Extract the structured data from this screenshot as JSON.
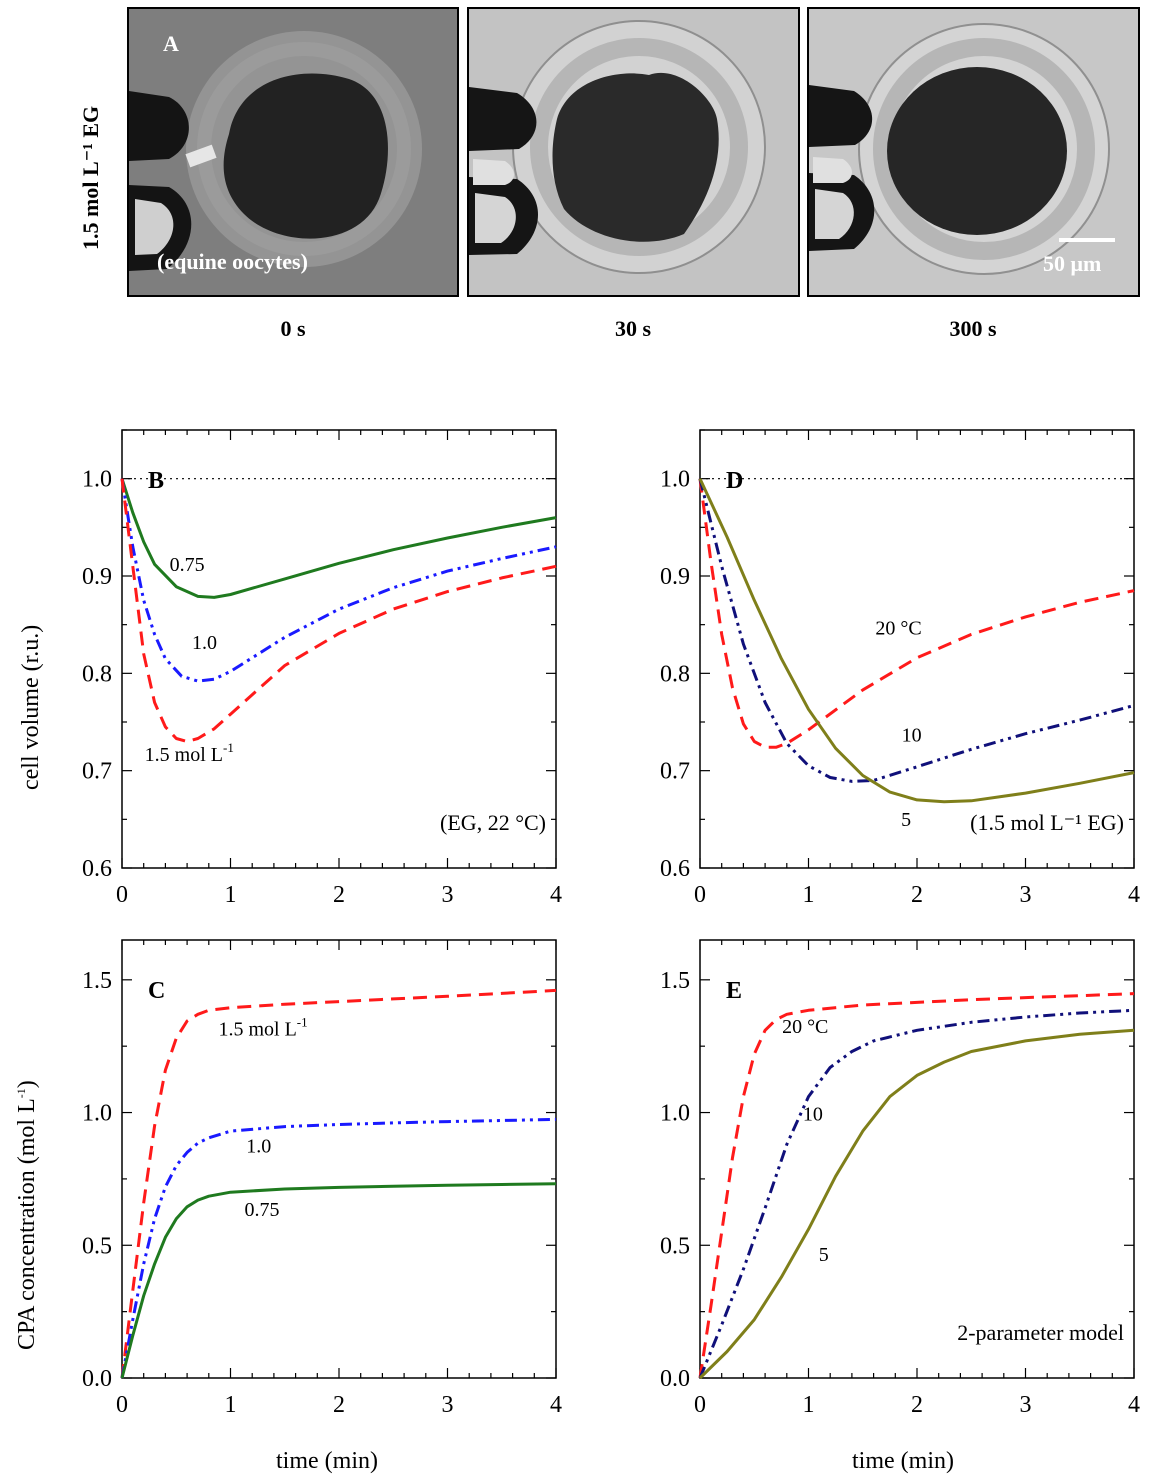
{
  "panel_a": {
    "letter": "A",
    "side_label": "1.5 mol L⁻¹ EG",
    "annotation": "(equine oocytes)",
    "scale_bar": "50 μm",
    "frames": [
      {
        "time": "0 s",
        "shade": "#7e7e7e"
      },
      {
        "time": "30 s",
        "shade": "#c3c3c3"
      },
      {
        "time": "300 s",
        "shade": "#c7c7c7"
      }
    ]
  },
  "colors": {
    "red": "#ff1a1a",
    "blue": "#1a1aff",
    "green": "#1f7a1f",
    "navy": "#10107a",
    "olive": "#7f7f1a"
  },
  "shared": {
    "xlabel": "time (min)",
    "ylabel_top": "cell volume (r.u.)",
    "ylabel_bottom": "CPA concentration (mol L",
    "ylabel_bottom_sup": "-1",
    "ylabel_bottom_end": ")"
  },
  "chart_data": [
    {
      "id": "B",
      "type": "line",
      "letter": "B",
      "xlim": [
        0,
        4
      ],
      "ylim": [
        0.6,
        1.05
      ],
      "xticks": [
        "0",
        "1",
        "2",
        "3",
        "4"
      ],
      "yticks": [
        "0.6",
        "0.7",
        "0.8",
        "0.9",
        "1.0"
      ],
      "ytick_values": [
        0.6,
        0.7,
        0.8,
        0.9,
        1.0
      ],
      "reference_line": 1.0,
      "annotation": "(EG, 22 °C)",
      "series": [
        {
          "name": "0.75",
          "style": "solid",
          "color": "green",
          "x": [
            0,
            0.1,
            0.2,
            0.3,
            0.5,
            0.7,
            0.85,
            1.0,
            1.5,
            2.0,
            2.5,
            3.0,
            3.5,
            4.0
          ],
          "y": [
            1.0,
            0.965,
            0.935,
            0.912,
            0.889,
            0.879,
            0.878,
            0.881,
            0.897,
            0.913,
            0.927,
            0.939,
            0.95,
            0.96
          ]
        },
        {
          "name": "1.0",
          "style": "dashdotdot",
          "color": "blue",
          "x": [
            0,
            0.1,
            0.2,
            0.3,
            0.4,
            0.55,
            0.7,
            0.85,
            1.0,
            1.5,
            2.0,
            2.5,
            3.0,
            3.5,
            4.0
          ],
          "y": [
            1.0,
            0.93,
            0.875,
            0.84,
            0.815,
            0.797,
            0.792,
            0.794,
            0.802,
            0.837,
            0.866,
            0.888,
            0.905,
            0.918,
            0.93
          ]
        },
        {
          "name": "1.5 mol L⁻¹",
          "style": "dashed",
          "color": "red",
          "x": [
            0,
            0.1,
            0.2,
            0.3,
            0.4,
            0.5,
            0.6,
            0.7,
            0.85,
            1.0,
            1.5,
            2.0,
            2.5,
            3.0,
            3.5,
            4.0
          ],
          "y": [
            1.0,
            0.91,
            0.82,
            0.77,
            0.745,
            0.733,
            0.73,
            0.733,
            0.743,
            0.758,
            0.808,
            0.841,
            0.866,
            0.884,
            0.898,
            0.91
          ]
        }
      ],
      "labels": [
        {
          "text": "0.75",
          "x": 0.6,
          "y": 0.905
        },
        {
          "text": "1.0",
          "x": 0.76,
          "y": 0.825
        },
        {
          "text": "1.5 mol L",
          "sup": "-1",
          "x": 0.62,
          "y": 0.71
        }
      ]
    },
    {
      "id": "D",
      "type": "line",
      "letter": "D",
      "xlim": [
        0,
        4
      ],
      "ylim": [
        0.6,
        1.05
      ],
      "xticks": [
        "0",
        "1",
        "2",
        "3",
        "4"
      ],
      "yticks": [
        "0.6",
        "0.7",
        "0.8",
        "0.9",
        "1.0"
      ],
      "ytick_values": [
        0.6,
        0.7,
        0.8,
        0.9,
        1.0
      ],
      "reference_line": 1.0,
      "annotation": "(1.5 mol L⁻¹ EG)",
      "series": [
        {
          "name": "20 °C",
          "style": "dashed",
          "color": "red",
          "x": [
            0,
            0.1,
            0.2,
            0.3,
            0.4,
            0.5,
            0.6,
            0.7,
            0.8,
            1.0,
            1.5,
            2.0,
            2.5,
            3.0,
            3.5,
            4.0
          ],
          "y": [
            1.0,
            0.915,
            0.84,
            0.785,
            0.748,
            0.73,
            0.724,
            0.724,
            0.728,
            0.742,
            0.783,
            0.816,
            0.84,
            0.858,
            0.873,
            0.885
          ]
        },
        {
          "name": "10",
          "style": "dashdotdot",
          "color": "navy",
          "x": [
            0,
            0.2,
            0.4,
            0.6,
            0.8,
            1.0,
            1.2,
            1.4,
            1.6,
            2.0,
            2.5,
            3.0,
            3.5,
            4.0
          ],
          "y": [
            1.0,
            0.91,
            0.83,
            0.77,
            0.728,
            0.705,
            0.693,
            0.689,
            0.69,
            0.704,
            0.722,
            0.738,
            0.752,
            0.767
          ]
        },
        {
          "name": "5",
          "style": "solid",
          "color": "olive",
          "x": [
            0,
            0.25,
            0.5,
            0.75,
            1.0,
            1.25,
            1.5,
            1.75,
            2.0,
            2.25,
            2.5,
            3.0,
            3.5,
            4.0
          ],
          "y": [
            1.0,
            0.94,
            0.875,
            0.815,
            0.763,
            0.723,
            0.695,
            0.678,
            0.67,
            0.668,
            0.669,
            0.677,
            0.687,
            0.698
          ]
        }
      ],
      "labels": [
        {
          "text": "20 °C",
          "x": 1.83,
          "y": 0.84
        },
        {
          "text": "10",
          "x": 1.95,
          "y": 0.73
        },
        {
          "text": "5",
          "x": 1.9,
          "y": 0.643
        }
      ]
    },
    {
      "id": "C",
      "type": "line",
      "letter": "C",
      "xlim": [
        0,
        4
      ],
      "ylim": [
        0.0,
        1.65
      ],
      "xticks": [
        "0",
        "1",
        "2",
        "3",
        "4"
      ],
      "yticks": [
        "0.0",
        "0.5",
        "1.0",
        "1.5"
      ],
      "ytick_values": [
        0.0,
        0.5,
        1.0,
        1.5
      ],
      "series": [
        {
          "name": "1.5 mol L⁻¹",
          "style": "dashed",
          "color": "red",
          "x": [
            0,
            0.1,
            0.2,
            0.3,
            0.4,
            0.5,
            0.6,
            0.7,
            0.8,
            1.0,
            1.5,
            2.0,
            2.5,
            3.0,
            3.5,
            4.0
          ],
          "y": [
            0.0,
            0.33,
            0.66,
            0.95,
            1.16,
            1.28,
            1.345,
            1.37,
            1.385,
            1.395,
            1.408,
            1.418,
            1.428,
            1.438,
            1.449,
            1.46
          ]
        },
        {
          "name": "1.0",
          "style": "dashdotdot",
          "color": "blue",
          "x": [
            0,
            0.1,
            0.2,
            0.3,
            0.4,
            0.5,
            0.6,
            0.7,
            0.8,
            1.0,
            1.5,
            2.0,
            2.5,
            3.0,
            3.5,
            4.0
          ],
          "y": [
            0.0,
            0.22,
            0.43,
            0.6,
            0.72,
            0.8,
            0.85,
            0.885,
            0.905,
            0.93,
            0.947,
            0.955,
            0.961,
            0.966,
            0.97,
            0.974
          ]
        },
        {
          "name": "0.75",
          "style": "solid",
          "color": "green",
          "x": [
            0,
            0.1,
            0.2,
            0.3,
            0.4,
            0.5,
            0.6,
            0.7,
            0.8,
            1.0,
            1.5,
            2.0,
            2.5,
            3.0,
            3.5,
            4.0
          ],
          "y": [
            0.0,
            0.16,
            0.31,
            0.43,
            0.53,
            0.6,
            0.645,
            0.67,
            0.685,
            0.7,
            0.712,
            0.718,
            0.722,
            0.726,
            0.729,
            0.732
          ]
        }
      ],
      "labels": [
        {
          "text": "1.5 mol L",
          "sup": "-1",
          "x": 1.3,
          "y": 1.29
        },
        {
          "text": "1.0",
          "x": 1.26,
          "y": 0.85
        },
        {
          "text": "0.75",
          "x": 1.29,
          "y": 0.61
        }
      ]
    },
    {
      "id": "E",
      "type": "line",
      "letter": "E",
      "xlim": [
        0,
        4
      ],
      "ylim": [
        0.0,
        1.65
      ],
      "xticks": [
        "0",
        "1",
        "2",
        "3",
        "4"
      ],
      "yticks": [
        "0.0",
        "0.5",
        "1.0",
        "1.5"
      ],
      "ytick_values": [
        0.0,
        0.5,
        1.0,
        1.5
      ],
      "annotation": "2-parameter model",
      "series": [
        {
          "name": "20 °C",
          "style": "dashed",
          "color": "red",
          "x": [
            0,
            0.1,
            0.2,
            0.3,
            0.4,
            0.5,
            0.6,
            0.7,
            0.8,
            1.0,
            1.5,
            2.0,
            2.5,
            3.0,
            3.5,
            4.0
          ],
          "y": [
            0.0,
            0.27,
            0.55,
            0.83,
            1.06,
            1.22,
            1.31,
            1.35,
            1.37,
            1.385,
            1.405,
            1.415,
            1.425,
            1.433,
            1.44,
            1.448
          ]
        },
        {
          "name": "10",
          "style": "dashdotdot",
          "color": "navy",
          "x": [
            0,
            0.2,
            0.4,
            0.6,
            0.8,
            1.0,
            1.2,
            1.4,
            1.6,
            1.8,
            2.0,
            2.5,
            3.0,
            3.5,
            4.0
          ],
          "y": [
            0.0,
            0.2,
            0.41,
            0.64,
            0.88,
            1.06,
            1.17,
            1.23,
            1.27,
            1.29,
            1.31,
            1.34,
            1.36,
            1.375,
            1.385
          ]
        },
        {
          "name": "5",
          "style": "solid",
          "color": "olive",
          "x": [
            0,
            0.25,
            0.5,
            0.75,
            1.0,
            1.25,
            1.5,
            1.75,
            2.0,
            2.25,
            2.5,
            3.0,
            3.5,
            4.0
          ],
          "y": [
            0.0,
            0.1,
            0.22,
            0.38,
            0.56,
            0.76,
            0.93,
            1.06,
            1.14,
            1.19,
            1.23,
            1.27,
            1.295,
            1.31
          ]
        }
      ],
      "labels": [
        {
          "text": "20 °C",
          "x": 0.97,
          "y": 1.3
        },
        {
          "text": "10",
          "x": 1.04,
          "y": 0.97
        },
        {
          "text": "5",
          "x": 1.14,
          "y": 0.44
        }
      ]
    }
  ]
}
